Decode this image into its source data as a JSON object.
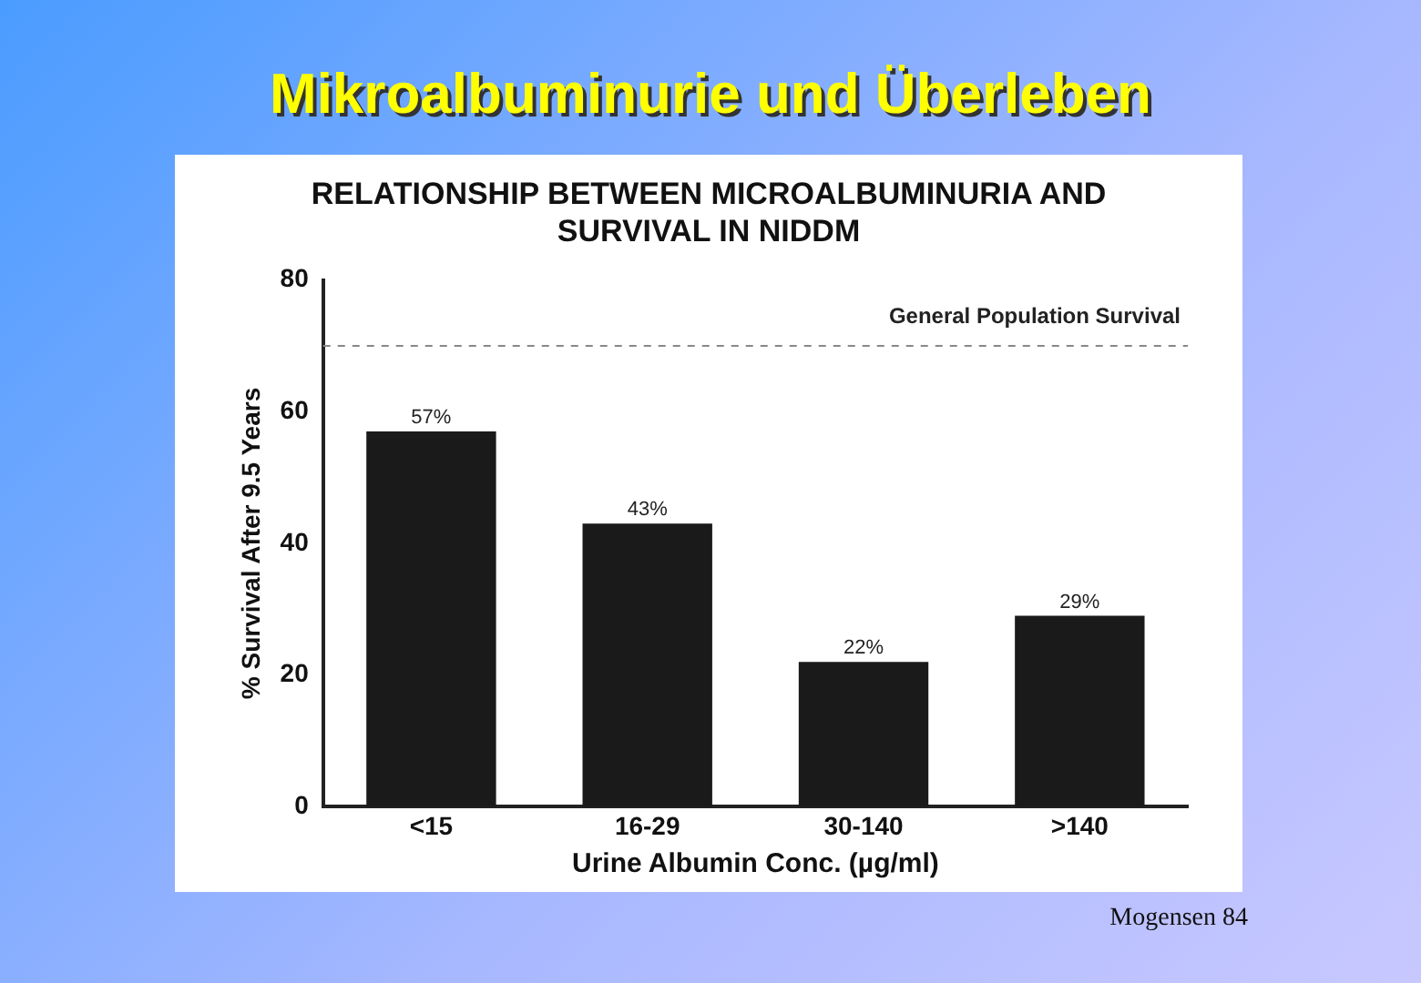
{
  "chart_data": {
    "type": "bar",
    "title": "Mikroalbuminurie und Überleben",
    "subtitle": "RELATIONSHIP BETWEEN MICROALBUMINURIA AND SURVIVAL IN NIDDM",
    "xlabel": "Urine Albumin Conc. (µg/ml)",
    "ylabel": "% Survival After 9.5 Years",
    "categories": [
      "<15",
      "16-29",
      "30-140",
      ">140"
    ],
    "values": [
      57,
      43,
      22,
      29
    ],
    "value_labels": [
      "57%",
      "43%",
      "22%",
      "29%"
    ],
    "color": "#1a1a1a",
    "ylim": [
      0,
      80
    ],
    "yticks": [
      0,
      20,
      40,
      60,
      80
    ],
    "grid": false,
    "legend": false,
    "ref_lines": [
      {
        "axis": "y",
        "value": 70,
        "label": "General Population Survival",
        "color": "#888888",
        "line_style": "dashed"
      }
    ],
    "annotations": [
      "Mogensen 84"
    ]
  }
}
